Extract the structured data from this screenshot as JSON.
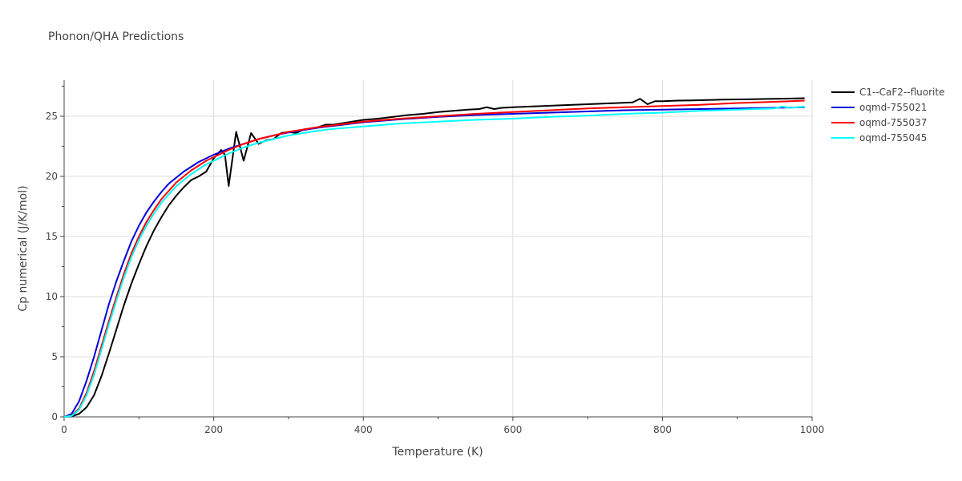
{
  "chart_data": {
    "type": "line",
    "title": "Phonon/QHA Predictions",
    "xlabel": "Temperature (K)",
    "ylabel": "Cp numerical (J/K/mol)",
    "xlim": [
      0,
      1000
    ],
    "ylim": [
      0,
      28
    ],
    "xticks": [
      0,
      200,
      400,
      600,
      800,
      1000
    ],
    "xtick_labels": [
      "0",
      "200",
      "400",
      "600",
      "800",
      "1000"
    ],
    "yticks": [
      0,
      5,
      10,
      15,
      20,
      25
    ],
    "ytick_labels": [
      "0",
      "5",
      "10",
      "15",
      "20",
      "25"
    ],
    "grid": true,
    "legend_position": "top-right",
    "series": [
      {
        "name": "C1--CaF2--fluorite",
        "color": "#000000",
        "x": [
          0,
          10,
          20,
          30,
          40,
          50,
          60,
          70,
          80,
          90,
          100,
          110,
          120,
          130,
          140,
          150,
          160,
          170,
          180,
          190,
          200,
          210,
          215,
          220,
          230,
          240,
          250,
          260,
          270,
          280,
          290,
          300,
          310,
          320,
          330,
          340,
          350,
          360,
          370,
          380,
          390,
          400,
          420,
          440,
          460,
          480,
          500,
          520,
          540,
          555,
          565,
          575,
          585,
          600,
          620,
          640,
          660,
          680,
          700,
          720,
          740,
          760,
          770,
          780,
          790,
          800,
          820,
          840,
          860,
          880,
          900,
          920,
          940,
          960,
          980,
          990
        ],
        "y": [
          0,
          0.05,
          0.25,
          0.8,
          1.8,
          3.4,
          5.3,
          7.3,
          9.3,
          11.1,
          12.7,
          14.2,
          15.5,
          16.6,
          17.6,
          18.4,
          19.1,
          19.7,
          20.0,
          20.4,
          21.5,
          22.2,
          21.8,
          19.2,
          23.7,
          21.3,
          23.6,
          22.7,
          23.0,
          23.1,
          23.6,
          23.7,
          23.6,
          23.9,
          24.0,
          24.1,
          24.3,
          24.3,
          24.4,
          24.5,
          24.6,
          24.7,
          24.8,
          24.95,
          25.1,
          25.2,
          25.35,
          25.45,
          25.55,
          25.6,
          25.75,
          25.6,
          25.7,
          25.75,
          25.8,
          25.85,
          25.9,
          25.95,
          26.0,
          26.05,
          26.1,
          26.15,
          26.45,
          26.0,
          26.25,
          26.25,
          26.3,
          26.32,
          26.35,
          26.38,
          26.4,
          26.42,
          26.44,
          26.46,
          26.48,
          26.5
        ]
      },
      {
        "name": "oqmd-755021",
        "color": "#0000dd",
        "x": [
          0,
          10,
          20,
          30,
          40,
          50,
          60,
          70,
          80,
          90,
          100,
          110,
          120,
          130,
          140,
          150,
          160,
          170,
          180,
          190,
          200,
          220,
          240,
          260,
          280,
          300,
          320,
          340,
          360,
          380,
          400,
          450,
          500,
          550,
          600,
          650,
          700,
          750,
          800,
          850,
          900,
          950,
          990
        ],
        "y": [
          0,
          0.25,
          1.3,
          3.0,
          5.0,
          7.2,
          9.4,
          11.3,
          13.0,
          14.6,
          15.9,
          17.0,
          17.9,
          18.7,
          19.4,
          19.9,
          20.4,
          20.8,
          21.2,
          21.5,
          21.8,
          22.3,
          22.7,
          23.1,
          23.4,
          23.65,
          23.85,
          24.05,
          24.2,
          24.35,
          24.5,
          24.75,
          24.95,
          25.1,
          25.2,
          25.3,
          25.4,
          25.5,
          25.55,
          25.6,
          25.65,
          25.7,
          25.75
        ]
      },
      {
        "name": "oqmd-755037",
        "color": "#ff0000",
        "x": [
          0,
          10,
          20,
          30,
          40,
          50,
          60,
          70,
          80,
          90,
          100,
          110,
          120,
          130,
          140,
          150,
          160,
          170,
          180,
          190,
          200,
          220,
          240,
          260,
          280,
          300,
          320,
          340,
          360,
          380,
          400,
          450,
          500,
          550,
          600,
          650,
          700,
          750,
          800,
          850,
          900,
          950,
          990
        ],
        "y": [
          0,
          0.1,
          0.7,
          2.0,
          3.8,
          5.9,
          8.0,
          10.0,
          11.9,
          13.6,
          15.0,
          16.2,
          17.2,
          18.1,
          18.8,
          19.5,
          20.0,
          20.5,
          20.9,
          21.3,
          21.6,
          22.2,
          22.7,
          23.1,
          23.4,
          23.7,
          23.9,
          24.1,
          24.25,
          24.4,
          24.55,
          24.8,
          25.0,
          25.2,
          25.35,
          25.5,
          25.65,
          25.75,
          25.85,
          25.95,
          26.1,
          26.2,
          26.3
        ]
      },
      {
        "name": "oqmd-755045",
        "color": "#00ffff",
        "x": [
          0,
          10,
          20,
          30,
          40,
          50,
          60,
          70,
          80,
          90,
          100,
          110,
          120,
          130,
          140,
          150,
          160,
          170,
          180,
          190,
          200,
          220,
          240,
          260,
          280,
          300,
          320,
          340,
          360,
          380,
          400,
          450,
          500,
          550,
          600,
          650,
          700,
          750,
          800,
          850,
          900,
          950,
          960,
          970,
          990
        ],
        "y": [
          0,
          0.08,
          0.6,
          1.8,
          3.5,
          5.6,
          7.7,
          9.7,
          11.6,
          13.3,
          14.7,
          15.9,
          16.9,
          17.8,
          18.5,
          19.2,
          19.7,
          20.2,
          20.6,
          21.0,
          21.3,
          21.9,
          22.4,
          22.8,
          23.1,
          23.4,
          23.6,
          23.8,
          23.95,
          24.05,
          24.15,
          24.4,
          24.55,
          24.7,
          24.8,
          24.95,
          25.05,
          25.2,
          25.3,
          25.45,
          25.55,
          25.65,
          25.8,
          25.7,
          25.8
        ]
      }
    ]
  }
}
